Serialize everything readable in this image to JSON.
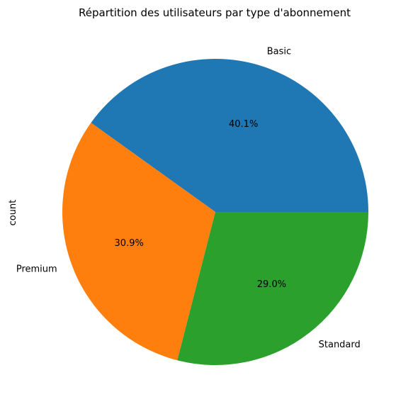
{
  "chart_data": {
    "type": "pie",
    "title": "Répartition des utilisateurs par type d'abonnement",
    "ylabel": "count",
    "categories": [
      "Basic",
      "Premium",
      "Standard"
    ],
    "values": [
      40.1,
      30.9,
      29.0
    ],
    "percent_labels": [
      "40.1%",
      "30.9%",
      "29.0%"
    ],
    "colors": [
      "#1f77b4",
      "#ff7f0e",
      "#2ca02c"
    ],
    "start_angle_deg": 0,
    "direction": "counterclockwise"
  }
}
